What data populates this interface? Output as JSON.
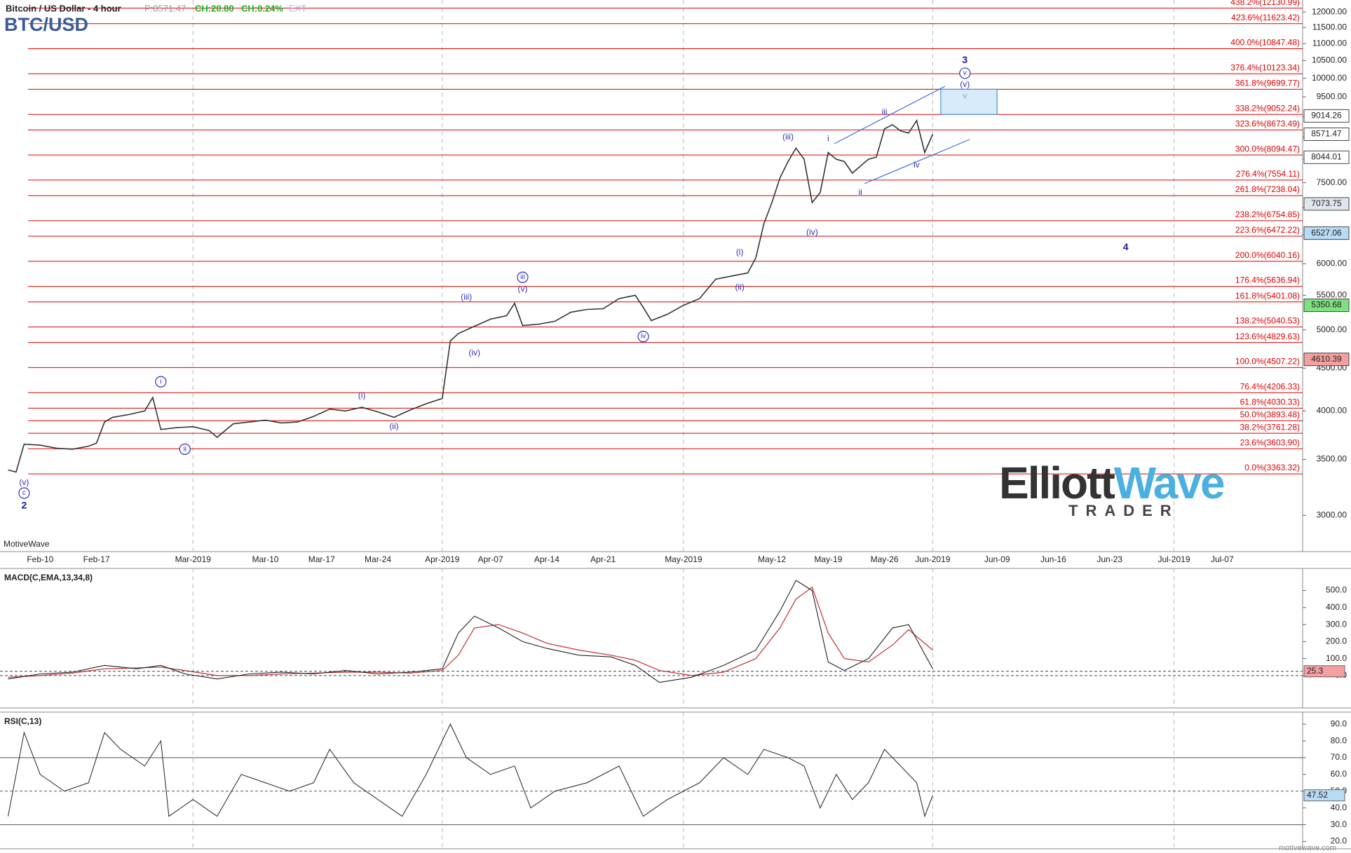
{
  "header": {
    "title": "Bitcoin / US Dollar - 4 hour",
    "price": "P:8571.47",
    "change": "CH:20.80",
    "change_pct": "CH:0.24%",
    "ext": "EXT",
    "symbol": "BTC/USD",
    "brand": "MotiveWave",
    "site": "motivewave.com",
    "logo_1": "Elliott",
    "logo_2": "Wave",
    "logo_3": "TRADER"
  },
  "chart_data": [
    {
      "type": "line",
      "log": true,
      "color": "#333333",
      "x": [
        "2019-02-06",
        "2019-02-07",
        "2019-02-08",
        "2019-02-10",
        "2019-02-12",
        "2019-02-14",
        "2019-02-16",
        "2019-02-17",
        "2019-02-18",
        "2019-02-19",
        "2019-02-21",
        "2019-02-23",
        "2019-02-24",
        "2019-02-25",
        "2019-02-27",
        "2019-03-01",
        "2019-03-03",
        "2019-03-04",
        "2019-03-06",
        "2019-03-08",
        "2019-03-10",
        "2019-03-12",
        "2019-03-14",
        "2019-03-16",
        "2019-03-18",
        "2019-03-20",
        "2019-03-22",
        "2019-03-24",
        "2019-03-26",
        "2019-03-28",
        "2019-03-30",
        "2019-04-01",
        "2019-04-02",
        "2019-04-03",
        "2019-04-05",
        "2019-04-07",
        "2019-04-09",
        "2019-04-10",
        "2019-04-11",
        "2019-04-13",
        "2019-04-15",
        "2019-04-17",
        "2019-04-19",
        "2019-04-21",
        "2019-04-23",
        "2019-04-25",
        "2019-04-26",
        "2019-04-27",
        "2019-04-29",
        "2019-05-01",
        "2019-05-03",
        "2019-05-05",
        "2019-05-07",
        "2019-05-09",
        "2019-05-10",
        "2019-05-11",
        "2019-05-12",
        "2019-05-13",
        "2019-05-14",
        "2019-05-15",
        "2019-05-16",
        "2019-05-17",
        "2019-05-18",
        "2019-05-19",
        "2019-05-20",
        "2019-05-21",
        "2019-05-22",
        "2019-05-23",
        "2019-05-24",
        "2019-05-25",
        "2019-05-26",
        "2019-05-27",
        "2019-05-28",
        "2019-05-29",
        "2019-05-30",
        "2019-05-31",
        "2019-06-01"
      ],
      "values": [
        3400,
        3380,
        3650,
        3640,
        3610,
        3600,
        3630,
        3660,
        3880,
        3930,
        3960,
        4000,
        4150,
        3800,
        3820,
        3830,
        3790,
        3720,
        3860,
        3880,
        3900,
        3870,
        3880,
        3940,
        4020,
        4000,
        4040,
        3990,
        3930,
        4010,
        4080,
        4140,
        4850,
        4950,
        5050,
        5150,
        5200,
        5380,
        5060,
        5080,
        5120,
        5250,
        5290,
        5300,
        5450,
        5500,
        5320,
        5130,
        5220,
        5350,
        5450,
        5750,
        5800,
        5850,
        6100,
        6700,
        7100,
        7600,
        7950,
        8250,
        8000,
        7100,
        7300,
        8150,
        8000,
        7950,
        7700,
        7850,
        8000,
        8050,
        8700,
        8800,
        8650,
        8600,
        8900,
        8150,
        8571.47
      ],
      "xlim": [
        "2019-02-05",
        "2019-07-17"
      ],
      "xticks": [
        {
          "value": "2019-02-10",
          "label": "Feb-10"
        },
        {
          "value": "2019-02-17",
          "label": "Feb-17"
        },
        {
          "value": "2019-03-01",
          "label": "Mar-2019"
        },
        {
          "value": "2019-03-10",
          "label": "Mar-10"
        },
        {
          "value": "2019-03-17",
          "label": "Mar-17"
        },
        {
          "value": "2019-03-24",
          "label": "Mar-24"
        },
        {
          "value": "2019-04-01",
          "label": "Apr-2019"
        },
        {
          "value": "2019-04-07",
          "label": "Apr-07"
        },
        {
          "value": "2019-04-14",
          "label": "Apr-14"
        },
        {
          "value": "2019-04-21",
          "label": "Apr-21"
        },
        {
          "value": "2019-05-01",
          "label": "May-2019"
        },
        {
          "value": "2019-05-12",
          "label": "May-12"
        },
        {
          "value": "2019-05-19",
          "label": "May-19"
        },
        {
          "value": "2019-05-26",
          "label": "May-26"
        },
        {
          "value": "2019-06-01",
          "label": "Jun-2019"
        },
        {
          "value": "2019-06-09",
          "label": "Jun-09"
        },
        {
          "value": "2019-06-16",
          "label": "Jun-16"
        },
        {
          "value": "2019-06-23",
          "label": "Jun-23"
        },
        {
          "value": "2019-07-01",
          "label": "Jul-2019"
        },
        {
          "value": "2019-07-07",
          "label": "Jul-07"
        }
      ],
      "ylim": [
        2715,
        12405
      ],
      "yticks": [
        {
          "value": 3000,
          "label": "3000.00"
        },
        {
          "value": 3500,
          "label": "3500.00"
        },
        {
          "value": 4000,
          "label": "4000.00"
        },
        {
          "value": 4500,
          "label": "4500.00"
        },
        {
          "value": 5000,
          "label": "5000.00"
        },
        {
          "value": 5500,
          "label": "5500.00"
        },
        {
          "value": 6000,
          "label": "6000.00"
        },
        {
          "value": 6500,
          "label": "6500.00"
        },
        {
          "value": 7000,
          "label": "7000.00"
        },
        {
          "value": 7500,
          "label": "7500.00"
        },
        {
          "value": 8000,
          "label": "8000.00"
        },
        {
          "value": 8500,
          "label": "8500.00"
        },
        {
          "value": 9000,
          "label": "9000.00"
        },
        {
          "value": 9500,
          "label": "9500.00"
        },
        {
          "value": 10000,
          "label": "10000.00"
        },
        {
          "value": 10500,
          "label": "10500.00"
        },
        {
          "value": 11000,
          "label": "11000.00"
        },
        {
          "value": 11500,
          "label": "11500.00"
        },
        {
          "value": 12000,
          "label": "12000.00"
        }
      ],
      "fib": {
        "color": "#dd0000",
        "values": [
          12130.99,
          11623.42,
          10847.48,
          10123.34,
          9699.77,
          9052.24,
          8673.49,
          8094.47,
          7554.11,
          7238.04,
          6754.85,
          6472.22,
          6040.16,
          5636.94,
          5401.08,
          5040.53,
          4829.63,
          4507.22,
          4206.33,
          4030.33,
          3893.48,
          3761.28,
          3603.9,
          3363.32
        ],
        "value_labels": [
          "438.2%(12130.99)",
          "423.6%(11623.42)",
          "400.0%(10847.48)",
          "376.4%(10123.34)",
          "361.8%(9699.77)",
          "338.2%(9052.24)",
          "323.6%(8673.49)",
          "300.0%(8094.47)",
          "276.4%(7554.11)",
          "261.8%(7238.04)",
          "238.2%(6754.85)",
          "223.6%(6472.22)",
          "200.0%(6040.16)",
          "176.4%(5636.94)",
          "161.8%(5401.08)",
          "138.2%(5040.53)",
          "123.6%(4829.63)",
          "100.0%(4507.22)",
          "76.4%(4206.33)",
          "61.8%(4030.33)",
          "50.0%(3893.48)",
          "38.2%(3761.28)",
          "23.6%(3603.90)",
          "0.0%(3363.32)"
        ]
      },
      "price_markers": [
        {
          "value": 9014.26,
          "fill": "#ffffff"
        },
        {
          "value": 8571.47,
          "fill": "#ffffff"
        },
        {
          "value": 8044.01,
          "fill": "#ffffff"
        },
        {
          "value": 7073.75,
          "fill": "#dfe6ee"
        },
        {
          "value": 6527.06,
          "fill": "#b9dcf5"
        },
        {
          "value": 5350.68,
          "fill": "#7fe07f"
        },
        {
          "value": 4610.39,
          "fill": "#f5a0a0"
        }
      ],
      "target_box": {
        "x": [
          "2019-06-02",
          "2019-06-09"
        ],
        "y": [
          9052.24,
          9699.77
        ],
        "color": "#4a90d9"
      },
      "annotations": [
        {
          "text": "(v)",
          "x": "2019-02-08",
          "y": 3283
        },
        {
          "text": "c",
          "x": "2019-02-08",
          "y": 3190,
          "circled": true
        },
        {
          "text": "2",
          "x": "2019-02-08",
          "y": 3080,
          "bold": true
        },
        {
          "text": "i",
          "x": "2019-02-25",
          "y": 4335,
          "circled": true
        },
        {
          "text": "ii",
          "x": "2019-02-28",
          "y": 3600,
          "circled": true
        },
        {
          "text": "(i)",
          "x": "2019-03-22",
          "y": 4170
        },
        {
          "text": "(ii)",
          "x": "2019-03-26",
          "y": 3830
        },
        {
          "text": "(iii)",
          "x": "2019-04-04",
          "y": 5470
        },
        {
          "text": "(iv)",
          "x": "2019-04-05",
          "y": 4690
        },
        {
          "text": "iii",
          "x": "2019-04-11",
          "y": 5780,
          "circled": true
        },
        {
          "text": "(v)",
          "x": "2019-04-11",
          "y": 5590
        },
        {
          "text": "iv",
          "x": "2019-04-26",
          "y": 4910,
          "circled": true
        },
        {
          "text": "(i)",
          "x": "2019-05-08",
          "y": 6190
        },
        {
          "text": "(ii)",
          "x": "2019-05-08",
          "y": 5620
        },
        {
          "text": "(iii)",
          "x": "2019-05-14",
          "y": 8500
        },
        {
          "text": "(iv)",
          "x": "2019-05-17",
          "y": 6540
        },
        {
          "text": "i",
          "x": "2019-05-19",
          "y": 8460
        },
        {
          "text": "ii",
          "x": "2019-05-23",
          "y": 7300
        },
        {
          "text": "iii",
          "x": "2019-05-26",
          "y": 9100
        },
        {
          "text": "iv",
          "x": "2019-05-30",
          "y": 7870
        },
        {
          "text": "3",
          "x": "2019-06-05",
          "y": 10500,
          "bold": true
        },
        {
          "text": "v",
          "x": "2019-06-05",
          "y": 10140,
          "circled": true
        },
        {
          "text": "(v)",
          "x": "2019-06-05",
          "y": 9820
        },
        {
          "text": "v",
          "x": "2019-06-05",
          "y": 9520,
          "light": true
        },
        {
          "text": "4",
          "x": "2019-06-25",
          "y": 6270,
          "bold": true
        }
      ]
    },
    {
      "type": "line",
      "title": "MACD(C,EMA,13,34,8)",
      "color": "#222222",
      "signal_color": "#c03030",
      "x": [
        "2019-02-06",
        "2019-02-10",
        "2019-02-14",
        "2019-02-18",
        "2019-02-22",
        "2019-02-25",
        "2019-02-28",
        "2019-03-04",
        "2019-03-08",
        "2019-03-12",
        "2019-03-16",
        "2019-03-20",
        "2019-03-24",
        "2019-03-28",
        "2019-04-01",
        "2019-04-03",
        "2019-04-05",
        "2019-04-08",
        "2019-04-11",
        "2019-04-14",
        "2019-04-18",
        "2019-04-22",
        "2019-04-25",
        "2019-04-28",
        "2019-05-02",
        "2019-05-06",
        "2019-05-10",
        "2019-05-13",
        "2019-05-15",
        "2019-05-17",
        "2019-05-19",
        "2019-05-21",
        "2019-05-24",
        "2019-05-27",
        "2019-05-29",
        "2019-06-01"
      ],
      "values": [
        -20,
        10,
        20,
        60,
        40,
        60,
        10,
        -20,
        10,
        20,
        10,
        30,
        10,
        20,
        40,
        250,
        350,
        280,
        200,
        160,
        120,
        110,
        60,
        -40,
        -10,
        60,
        150,
        380,
        560,
        500,
        80,
        30,
        100,
        280,
        300,
        40
      ],
      "signal": [
        -10,
        0,
        15,
        40,
        45,
        50,
        30,
        0,
        0,
        10,
        15,
        20,
        20,
        15,
        30,
        120,
        280,
        300,
        250,
        190,
        150,
        120,
        90,
        30,
        0,
        20,
        100,
        280,
        450,
        520,
        250,
        100,
        80,
        180,
        270,
        150
      ],
      "ylim": [
        -190,
        630
      ],
      "yticks": [
        {
          "value": 0,
          "label": "-0.0"
        },
        {
          "value": 100,
          "label": "100.0"
        },
        {
          "value": 200,
          "label": "200.0"
        },
        {
          "value": 300,
          "label": "300.0"
        },
        {
          "value": 400,
          "label": "400.0"
        },
        {
          "value": 500,
          "label": "500.0"
        }
      ],
      "marker": 25.3
    },
    {
      "type": "line",
      "title": "RSI(C,13)",
      "color": "#333333",
      "x": [
        "2019-02-06",
        "2019-02-08",
        "2019-02-10",
        "2019-02-13",
        "2019-02-16",
        "2019-02-18",
        "2019-02-20",
        "2019-02-23",
        "2019-02-25",
        "2019-02-26",
        "2019-03-01",
        "2019-03-04",
        "2019-03-07",
        "2019-03-10",
        "2019-03-13",
        "2019-03-16",
        "2019-03-18",
        "2019-03-21",
        "2019-03-24",
        "2019-03-27",
        "2019-03-30",
        "2019-04-02",
        "2019-04-04",
        "2019-04-07",
        "2019-04-10",
        "2019-04-12",
        "2019-04-15",
        "2019-04-19",
        "2019-04-23",
        "2019-04-26",
        "2019-04-29",
        "2019-05-03",
        "2019-05-06",
        "2019-05-09",
        "2019-05-11",
        "2019-05-14",
        "2019-05-16",
        "2019-05-18",
        "2019-05-20",
        "2019-05-22",
        "2019-05-24",
        "2019-05-26",
        "2019-05-28",
        "2019-05-30",
        "2019-05-31",
        "2019-06-01"
      ],
      "values": [
        35,
        85,
        60,
        50,
        55,
        85,
        75,
        65,
        80,
        35,
        45,
        35,
        60,
        55,
        50,
        55,
        75,
        55,
        45,
        35,
        60,
        90,
        70,
        60,
        65,
        40,
        50,
        55,
        65,
        35,
        45,
        55,
        70,
        60,
        75,
        70,
        65,
        40,
        60,
        45,
        55,
        75,
        65,
        55,
        35,
        47.52
      ],
      "ylim": [
        15.6,
        97.2
      ],
      "yticks": [
        {
          "value": 20,
          "label": "20.0"
        },
        {
          "value": 30,
          "label": "30.0"
        },
        {
          "value": 40,
          "label": "40.0"
        },
        {
          "value": 50,
          "label": "50.0"
        },
        {
          "value": 60,
          "label": "60.0"
        },
        {
          "value": 70,
          "label": "70.0"
        },
        {
          "value": 80,
          "label": "80.0"
        },
        {
          "value": 90,
          "label": "90.0"
        }
      ],
      "levels": [
        30,
        70
      ],
      "mid": 50,
      "marker": 47.52
    }
  ]
}
